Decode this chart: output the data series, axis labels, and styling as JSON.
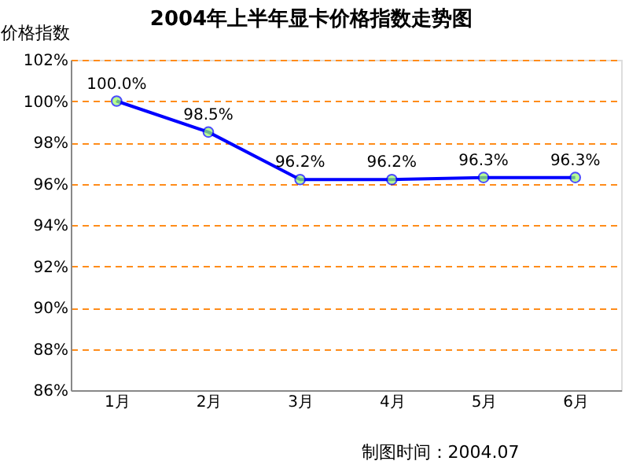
{
  "chart_data": {
    "type": "line",
    "title": "2004年上半年显卡价格指数走势图",
    "ylabel": "价格指数",
    "categories": [
      "1月",
      "2月",
      "3月",
      "4月",
      "5月",
      "6月"
    ],
    "series": [
      {
        "color": "#0000ff",
        "values": [
          100.0,
          98.5,
          96.2,
          96.2,
          96.3,
          96.3
        ]
      }
    ],
    "ylim": [
      86,
      102
    ],
    "yticks": [
      {
        "value": 86,
        "label": "86%"
      },
      {
        "value": 88,
        "label": "88%"
      },
      {
        "value": 90,
        "label": "90%"
      },
      {
        "value": 92,
        "label": "92%"
      },
      {
        "value": 94,
        "label": "94%"
      },
      {
        "value": 96,
        "label": "96%"
      },
      {
        "value": 98,
        "label": "98%"
      },
      {
        "value": 100,
        "label": "100%"
      },
      {
        "value": 102,
        "label": "102%"
      }
    ],
    "value_labels": [
      "100.0%",
      "98.5%",
      "96.2%",
      "96.2%",
      "96.3%",
      "96.3%"
    ],
    "grid": "y",
    "marker": "circle",
    "line_style": "solid",
    "annotations": [
      "制图时间：2004.07"
    ]
  }
}
